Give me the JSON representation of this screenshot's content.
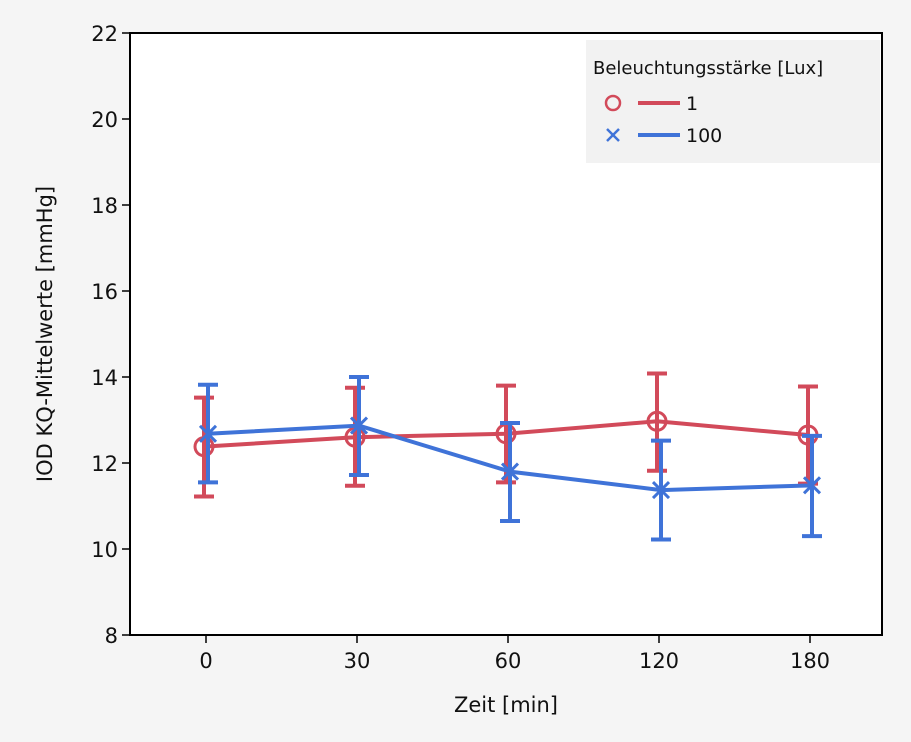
{
  "chart_data": {
    "type": "line",
    "title": "",
    "xlabel": "Zeit [min]",
    "ylabel": "IOD KQ-Mittelwerte [mmHg]",
    "categories": [
      "0",
      "30",
      "60",
      "120",
      "180"
    ],
    "ylim": [
      8,
      22
    ],
    "yticks": [
      "8",
      "10",
      "12",
      "14",
      "16",
      "18",
      "20",
      "22"
    ],
    "grid": false,
    "legend": {
      "title": "Beleuchtungsstärke [Lux]",
      "placement": "top-right"
    },
    "series": [
      {
        "name": "1",
        "marker": "circle",
        "color": "#d24a5a",
        "values": [
          12.38,
          12.6,
          12.68,
          12.97,
          12.65
        ],
        "err_low": [
          11.22,
          11.47,
          11.55,
          11.82,
          11.52
        ],
        "err_high": [
          13.52,
          13.75,
          13.8,
          14.08,
          13.78
        ]
      },
      {
        "name": "100",
        "marker": "x",
        "color": "#3f73d8",
        "values": [
          12.68,
          12.87,
          11.8,
          11.37,
          11.48
        ],
        "err_low": [
          11.55,
          11.72,
          10.65,
          10.22,
          10.3
        ],
        "err_high": [
          13.82,
          14.0,
          12.93,
          12.52,
          12.63
        ]
      }
    ]
  }
}
